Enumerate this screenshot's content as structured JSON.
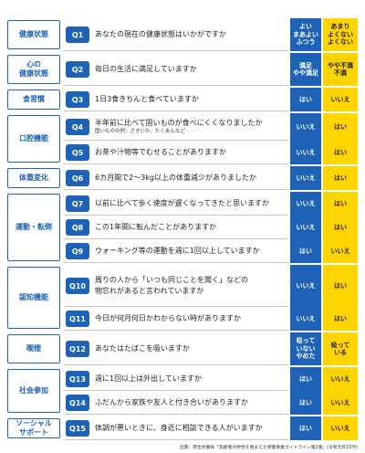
{
  "categories": [
    {
      "label": [
        "健康状態"
      ],
      "rows": [
        {
          "q": "Q1",
          "text": [
            "あなたの現在の健康状態はいかがですか"
          ],
          "answers": [
            [
              "よい",
              "まあよい",
              "ふつう"
            ],
            [
              "あまり",
              "よくない",
              "よくない"
            ]
          ]
        }
      ]
    },
    {
      "label": [
        "心の",
        "健康状態"
      ],
      "rows": [
        {
          "q": "Q2",
          "text": [
            "毎日の生活に満足していますか"
          ],
          "answers": [
            [
              "満足",
              "やや満足"
            ],
            [
              "やや不満",
              "不満"
            ]
          ]
        }
      ]
    },
    {
      "label": [
        "食習慣"
      ],
      "rows": [
        {
          "q": "Q3",
          "text": [
            "1日3食きちんと食べていますか"
          ],
          "answers": [
            [
              "はい"
            ],
            [
              "いいえ"
            ]
          ]
        }
      ]
    },
    {
      "label": [
        "口腔機能"
      ],
      "rows": [
        {
          "q": "Q4",
          "text": [
            "半年前に比べて固いものが食べにくくなりましたか"
          ],
          "note": "固いものの例：さきいか、たくあんなど",
          "answers": [
            [
              "いいえ"
            ],
            [
              "はい"
            ]
          ]
        },
        {
          "q": "Q5",
          "text": [
            "お茶や汁物等でむせることがありますか"
          ],
          "answers": [
            [
              "いいえ"
            ],
            [
              "はい"
            ]
          ]
        }
      ]
    },
    {
      "label": [
        "体重変化"
      ],
      "rows": [
        {
          "q": "Q6",
          "text": [
            "6カ月間で2～3kg以上の体重減少がありましたか"
          ],
          "answers": [
            [
              "いいえ"
            ],
            [
              "はい"
            ]
          ]
        }
      ]
    },
    {
      "label": [
        "運動・転倒"
      ],
      "rows": [
        {
          "q": "Q7",
          "text": [
            "以前に比べて歩く速度が遅くなってきたと思いますか"
          ],
          "answers": [
            [
              "いいえ"
            ],
            [
              "はい"
            ]
          ]
        },
        {
          "q": "Q8",
          "text": [
            "この1年間に転んだことがありますか"
          ],
          "answers": [
            [
              "いいえ"
            ],
            [
              "はい"
            ]
          ]
        },
        {
          "q": "Q9",
          "text": [
            "ウォーキング等の運動を週に1回以上していますか"
          ],
          "answers": [
            [
              "はい"
            ],
            [
              "いいえ"
            ]
          ]
        }
      ]
    },
    {
      "label": [
        "認知機能"
      ],
      "rows": [
        {
          "q": "Q10",
          "text": [
            "周りの人から「いつも同じことを聞く」などの",
            "物忘れがあると言われていますか"
          ],
          "answers": [
            [
              "いいえ"
            ],
            [
              "はい"
            ]
          ]
        },
        {
          "q": "Q11",
          "text": [
            "今日が何月何日かわからない時がありますか"
          ],
          "answers": [
            [
              "いいえ"
            ],
            [
              "はい"
            ]
          ]
        }
      ]
    },
    {
      "label": [
        "喫煙"
      ],
      "rows": [
        {
          "q": "Q12",
          "text": [
            "あなたはたばこを吸いますか"
          ],
          "answers": [
            [
              "吸って",
              "いない",
              "やめた"
            ],
            [
              "吸って",
              "いる"
            ]
          ]
        }
      ]
    },
    {
      "label": [
        "社会参加"
      ],
      "rows": [
        {
          "q": "Q13",
          "text": [
            "週に1回以上は外出していますか"
          ],
          "answers": [
            [
              "はい"
            ],
            [
              "いいえ"
            ]
          ]
        },
        {
          "q": "Q14",
          "text": [
            "ふだんから家族や友人と付き合いがありますか"
          ],
          "answers": [
            [
              "はい"
            ],
            [
              "いいえ"
            ]
          ]
        }
      ]
    },
    {
      "label": [
        "ソーシャル",
        "サポート"
      ],
      "rows": [
        {
          "q": "Q15",
          "text": [
            "体調が悪いときに、身近に相談できる人がいますか"
          ],
          "answers": [
            [
              "はい"
            ],
            [
              "いいえ"
            ]
          ]
        }
      ]
    }
  ],
  "source": "出典：厚生労働省「高齢者の特性を踏まえた保健事業ガイドライン第2版」(令和元年10月)"
}
